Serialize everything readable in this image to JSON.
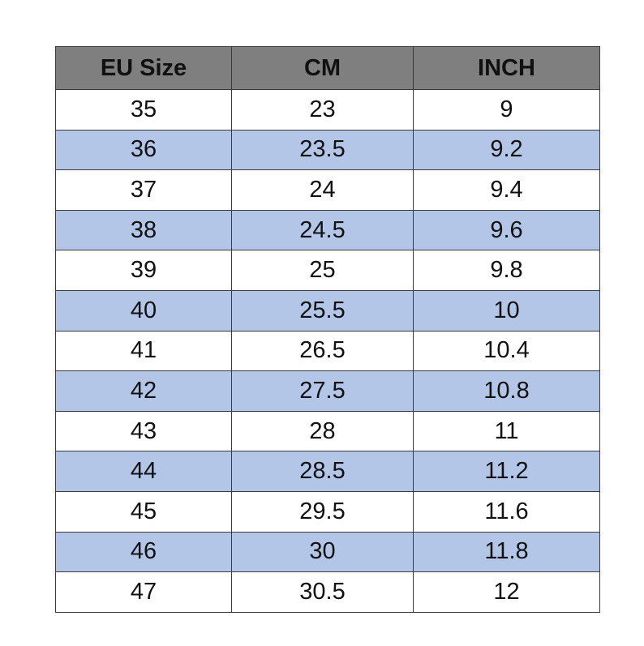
{
  "table": {
    "header": [
      "EU Size",
      "CM",
      "INCH"
    ],
    "rows": [
      [
        "35",
        "23",
        "9"
      ],
      [
        "36",
        "23.5",
        "9.2"
      ],
      [
        "37",
        "24",
        "9.4"
      ],
      [
        "38",
        "24.5",
        "9.6"
      ],
      [
        "39",
        "25",
        "9.8"
      ],
      [
        "40",
        "25.5",
        "10"
      ],
      [
        "41",
        "26.5",
        "10.4"
      ],
      [
        "42",
        "27.5",
        "10.8"
      ],
      [
        "43",
        "28",
        "11"
      ],
      [
        "44",
        "28.5",
        "11.2"
      ],
      [
        "45",
        "29.5",
        "11.6"
      ],
      [
        "46",
        "30",
        "11.8"
      ],
      [
        "47",
        "30.5",
        "12"
      ]
    ]
  }
}
